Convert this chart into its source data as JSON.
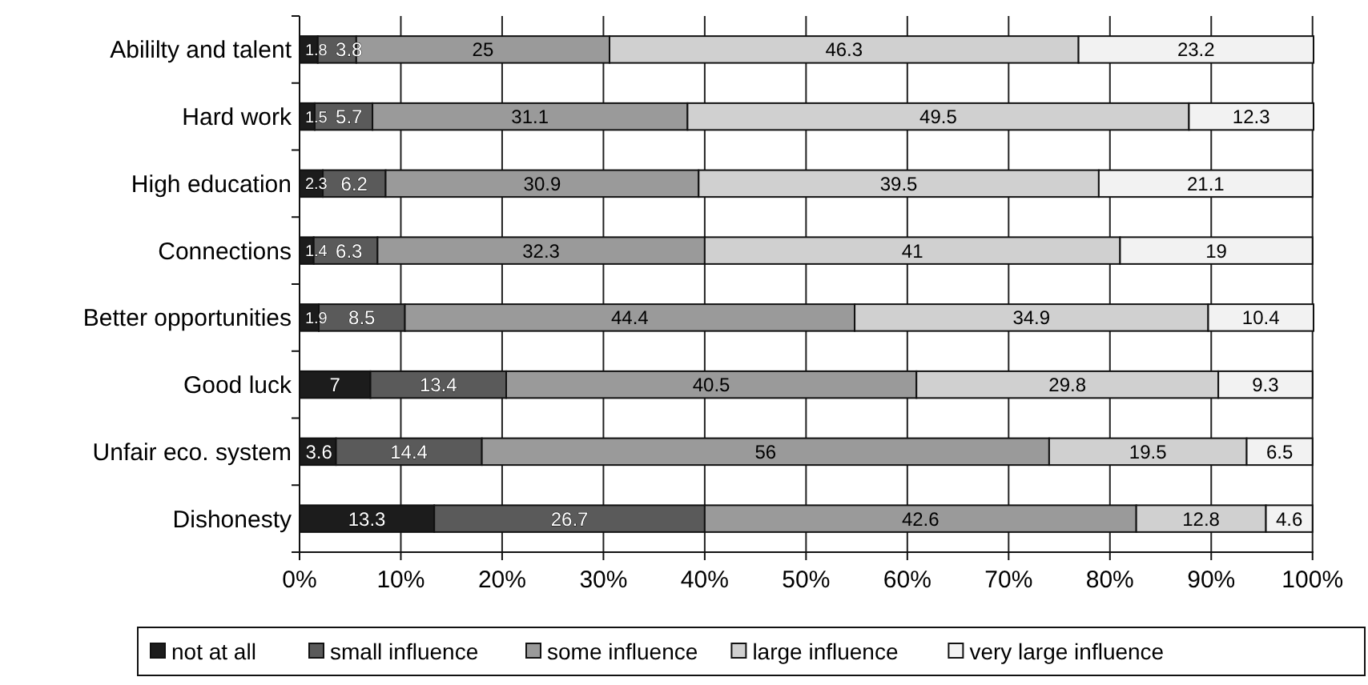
{
  "chart_data": {
    "type": "bar",
    "orientation": "horizontal",
    "stacked": true,
    "categories": [
      "Abililty and talent",
      "Hard work",
      "High education",
      "Connections",
      "Better opportunities",
      "Good luck",
      "Unfair eco. system",
      "Dishonesty"
    ],
    "series": [
      {
        "name": "not at all",
        "color": "#1c1c1c",
        "values": [
          1.8,
          1.5,
          2.3,
          1.4,
          1.9,
          7,
          3.6,
          13.3
        ]
      },
      {
        "name": "small influence",
        "color": "#5a5a5a",
        "values": [
          3.8,
          5.7,
          6.2,
          6.3,
          8.5,
          13.4,
          14.4,
          26.7
        ]
      },
      {
        "name": "some influence",
        "color": "#9a9a9a",
        "values": [
          25,
          31.1,
          30.9,
          32.3,
          44.4,
          40.5,
          56,
          42.6
        ]
      },
      {
        "name": "large influence",
        "color": "#d0d0d0",
        "values": [
          46.3,
          49.5,
          39.5,
          41,
          34.9,
          29.8,
          19.5,
          12.8
        ]
      },
      {
        "name": "very large influence",
        "color": "#f2f2f2",
        "values": [
          23.2,
          12.3,
          21.1,
          19,
          10.4,
          9.3,
          6.5,
          4.6
        ]
      }
    ],
    "xlim": [
      0,
      100.1
    ],
    "xticks": [
      {
        "value": 0,
        "label": "0%"
      },
      {
        "value": 10,
        "label": "10%"
      },
      {
        "value": 20,
        "label": "20%"
      },
      {
        "value": 30,
        "label": "30%"
      },
      {
        "value": 40,
        "label": "40%"
      },
      {
        "value": 50,
        "label": "50%"
      },
      {
        "value": 60,
        "label": "60%"
      },
      {
        "value": 70,
        "label": "70%"
      },
      {
        "value": 80,
        "label": "80%"
      },
      {
        "value": 90,
        "label": "90%"
      },
      {
        "value": 100,
        "label": "100%"
      }
    ],
    "grid": "x",
    "legend": "bottom",
    "data_labels": true
  }
}
